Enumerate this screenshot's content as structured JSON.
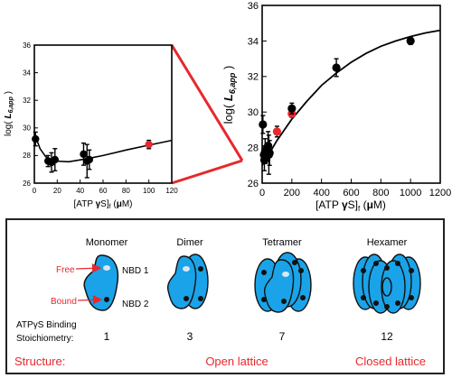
{
  "colors": {
    "axis": "#000000",
    "point": "#000000",
    "highlight_point": "#e8282b",
    "connector": "#e8282b",
    "protein_fill": "#1aa3e8",
    "protein_stroke": "#111111",
    "free_site": "#d8e8f0",
    "bound_site": "#111111",
    "red_text": "#e8282b"
  },
  "chart_data": [
    {
      "type": "scatter",
      "title": "",
      "ylabel": "log( L6,app )",
      "ylabel_main": "log( ",
      "ylabel_sub": "L",
      "ylabel_subscript": "6,app",
      "ylabel_close": " )",
      "xlabel_prefix": "[ATP ",
      "xlabel_gamma": "γ",
      "xlabel_mid": "S]",
      "xlabel_sub": "f",
      "xlabel_unit": " (",
      "xlabel_mu": "μ",
      "xlabel_unit_end": "M)",
      "xlim": [
        0,
        120
      ],
      "ylim": [
        26,
        36
      ],
      "xticks": [
        "0",
        "20",
        "40",
        "60",
        "80",
        "100",
        "120"
      ],
      "yticks": [
        "26",
        "28",
        "30",
        "32",
        "34",
        "36"
      ],
      "points": [
        {
          "x": 1,
          "y": 29.2,
          "err": 0.5,
          "highlight": false
        },
        {
          "x": 12,
          "y": 27.6,
          "err": 0.4,
          "highlight": false
        },
        {
          "x": 15,
          "y": 27.5,
          "err": 0.7,
          "highlight": false
        },
        {
          "x": 18,
          "y": 27.7,
          "err": 0.8,
          "highlight": false
        },
        {
          "x": 43,
          "y": 28.1,
          "err": 0.8,
          "highlight": false
        },
        {
          "x": 46,
          "y": 27.6,
          "err": 1.2,
          "highlight": false
        },
        {
          "x": 48,
          "y": 27.7,
          "err": 0.7,
          "highlight": false
        },
        {
          "x": 100,
          "y": 28.8,
          "err": 0.3,
          "highlight": true
        }
      ],
      "fit": [
        [
          0,
          29.6
        ],
        [
          5,
          28.5
        ],
        [
          10,
          27.9
        ],
        [
          18,
          27.6
        ],
        [
          30,
          27.55
        ],
        [
          45,
          27.75
        ],
        [
          60,
          28.0
        ],
        [
          80,
          28.4
        ],
        [
          100,
          28.75
        ],
        [
          120,
          29.1
        ]
      ]
    },
    {
      "type": "scatter",
      "title": "",
      "ylabel": "log( L6,app )",
      "ylabel_main": "log( ",
      "ylabel_sub": "L",
      "ylabel_subscript": "6,app",
      "ylabel_close": " )",
      "xlabel_prefix": "[ATP ",
      "xlabel_gamma": "γ",
      "xlabel_mid": "S]",
      "xlabel_sub": "f",
      "xlabel_unit": " (",
      "xlabel_mu": "μ",
      "xlabel_unit_end": "M)",
      "xlim": [
        0,
        1200
      ],
      "ylim": [
        26,
        36
      ],
      "xticks": [
        "0",
        "200",
        "400",
        "600",
        "800",
        "1000",
        "1200"
      ],
      "yticks": [
        "26",
        "28",
        "30",
        "32",
        "34",
        "36"
      ],
      "points": [
        {
          "x": 5,
          "y": 29.3,
          "err": 0.5,
          "highlight": false
        },
        {
          "x": 12,
          "y": 27.6,
          "err": 0.5,
          "highlight": false
        },
        {
          "x": 15,
          "y": 27.3,
          "err": 0.6,
          "highlight": false
        },
        {
          "x": 20,
          "y": 27.8,
          "err": 0.7,
          "highlight": false
        },
        {
          "x": 40,
          "y": 28.1,
          "err": 0.8,
          "highlight": false
        },
        {
          "x": 45,
          "y": 27.6,
          "err": 1.1,
          "highlight": false
        },
        {
          "x": 50,
          "y": 27.7,
          "err": 0.7,
          "highlight": false
        },
        {
          "x": 100,
          "y": 28.9,
          "err": 0.3,
          "highlight": true
        },
        {
          "x": 200,
          "y": 29.9,
          "err": 0.2,
          "highlight": true
        },
        {
          "x": 200,
          "y": 30.2,
          "err": 0.3,
          "highlight": false
        },
        {
          "x": 500,
          "y": 32.5,
          "err": 0.5,
          "highlight": false
        },
        {
          "x": 1000,
          "y": 34.0,
          "err": 0.2,
          "highlight": false
        }
      ],
      "fit": [
        [
          0,
          27.0
        ],
        [
          50,
          27.7
        ],
        [
          100,
          28.4
        ],
        [
          150,
          29.0
        ],
        [
          200,
          29.6
        ],
        [
          300,
          30.6
        ],
        [
          400,
          31.5
        ],
        [
          500,
          32.2
        ],
        [
          600,
          32.8
        ],
        [
          700,
          33.3
        ],
        [
          800,
          33.7
        ],
        [
          900,
          34.0
        ],
        [
          1000,
          34.25
        ],
        [
          1100,
          34.45
        ],
        [
          1200,
          34.6
        ]
      ]
    }
  ],
  "schematic": {
    "species": [
      {
        "label": "Monomer",
        "stoichiometry": "1"
      },
      {
        "label": "Dimer",
        "stoichiometry": "3"
      },
      {
        "label": "Tetramer",
        "stoichiometry": "7"
      },
      {
        "label": "Hexamer",
        "stoichiometry": "12"
      }
    ],
    "free_label": "Free",
    "bound_label": "Bound",
    "nbd1_label": "NBD 1",
    "nbd2_label": "NBD 2",
    "binding_label_1": "ATPγS Binding",
    "binding_label_2": "Stoichiometry:",
    "structure_label": "Structure:",
    "open_lattice_label": "Open lattice",
    "closed_lattice_label": "Closed lattice"
  }
}
